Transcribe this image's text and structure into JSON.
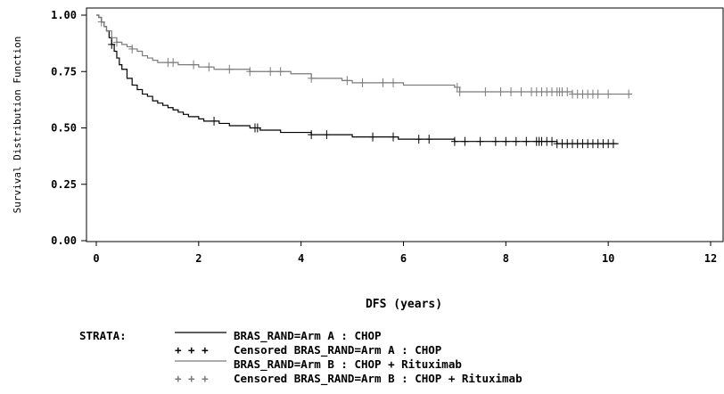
{
  "chart_data": {
    "type": "line",
    "subtype": "kaplan-meier",
    "title": "",
    "xlabel": "DFS (years)",
    "ylabel": "Survival Distribution Function",
    "xlim": [
      0,
      12
    ],
    "ylim": [
      0,
      1
    ],
    "x_ticks": [
      "0",
      "2",
      "4",
      "6",
      "8",
      "10",
      "12"
    ],
    "y_ticks": [
      "0.00",
      "0.25",
      "0.50",
      "0.75",
      "1.00"
    ],
    "grid": false,
    "legend": {
      "title": "STRATA:",
      "placement": "bottom",
      "entries": [
        {
          "label": "BRAS_RAND=Arm A : CHOP",
          "symbol": "line",
          "color": "#000000"
        },
        {
          "label": "Censored BRAS_RAND=Arm A : CHOP",
          "symbol": "+ + +",
          "color": "#000000"
        },
        {
          "label": "BRAS_RAND=Arm B : CHOP + Rituximab",
          "symbol": "line",
          "color": "#7a7a7a"
        },
        {
          "label": "Censored BRAS_RAND=Arm B : CHOP + Rituximab",
          "symbol": "+ + +",
          "color": "#7a7a7a"
        }
      ]
    },
    "series": [
      {
        "name": "BRAS_RAND=Arm A : CHOP",
        "color": "#000000",
        "x": [
          0,
          0.05,
          0.1,
          0.15,
          0.2,
          0.25,
          0.3,
          0.35,
          0.4,
          0.45,
          0.5,
          0.6,
          0.7,
          0.8,
          0.9,
          1.0,
          1.1,
          1.2,
          1.3,
          1.4,
          1.5,
          1.6,
          1.7,
          1.8,
          1.9,
          2.0,
          2.1,
          2.2,
          2.4,
          2.6,
          2.8,
          3.0,
          3.2,
          3.4,
          3.6,
          3.8,
          4.0,
          4.2,
          4.5,
          4.8,
          5.0,
          5.3,
          5.6,
          5.9,
          6.2,
          6.5,
          6.8,
          7.0,
          7.5,
          8.0,
          8.5,
          9.0,
          9.5,
          10.2
        ],
        "y": [
          1.0,
          0.99,
          0.97,
          0.95,
          0.93,
          0.9,
          0.87,
          0.84,
          0.81,
          0.78,
          0.76,
          0.72,
          0.69,
          0.67,
          0.65,
          0.64,
          0.62,
          0.61,
          0.6,
          0.59,
          0.58,
          0.57,
          0.56,
          0.55,
          0.55,
          0.54,
          0.53,
          0.53,
          0.52,
          0.51,
          0.51,
          0.5,
          0.49,
          0.49,
          0.48,
          0.48,
          0.48,
          0.47,
          0.47,
          0.47,
          0.46,
          0.46,
          0.46,
          0.45,
          0.45,
          0.45,
          0.45,
          0.44,
          0.44,
          0.44,
          0.44,
          0.43,
          0.43,
          0.43
        ],
        "censored_x": [
          0.3,
          2.3,
          3.1,
          3.15,
          4.2,
          4.5,
          5.4,
          5.8,
          6.3,
          6.5,
          7.0,
          7.2,
          7.5,
          7.8,
          8.0,
          8.2,
          8.4,
          8.6,
          8.65,
          8.7,
          8.8,
          8.9,
          9.0,
          9.1,
          9.2,
          9.3,
          9.4,
          9.5,
          9.6,
          9.7,
          9.8,
          9.9,
          10.0,
          10.1
        ]
      },
      {
        "name": "BRAS_RAND=Arm B : CHOP + Rituximab",
        "color": "#7a7a7a",
        "x": [
          0,
          0.05,
          0.1,
          0.15,
          0.2,
          0.3,
          0.4,
          0.5,
          0.6,
          0.7,
          0.8,
          0.9,
          1.0,
          1.1,
          1.2,
          1.4,
          1.6,
          1.8,
          2.0,
          2.3,
          2.6,
          3.0,
          3.4,
          3.8,
          4.2,
          4.5,
          4.8,
          5.0,
          5.5,
          6.0,
          6.5,
          7.0,
          7.1,
          7.5,
          8.0,
          8.5,
          9.0,
          9.3,
          9.6,
          10.45
        ],
        "y": [
          1.0,
          0.99,
          0.97,
          0.95,
          0.93,
          0.9,
          0.88,
          0.87,
          0.86,
          0.85,
          0.84,
          0.82,
          0.81,
          0.8,
          0.79,
          0.79,
          0.78,
          0.78,
          0.77,
          0.76,
          0.76,
          0.75,
          0.75,
          0.74,
          0.72,
          0.72,
          0.71,
          0.7,
          0.7,
          0.69,
          0.69,
          0.68,
          0.66,
          0.66,
          0.66,
          0.66,
          0.66,
          0.65,
          0.65,
          0.65
        ],
        "censored_x": [
          0.1,
          0.4,
          0.7,
          1.4,
          1.5,
          1.9,
          2.2,
          2.6,
          3.0,
          3.4,
          3.6,
          4.2,
          4.9,
          5.2,
          5.6,
          5.8,
          7.05,
          7.1,
          7.6,
          7.9,
          8.1,
          8.3,
          8.5,
          8.6,
          8.7,
          8.8,
          8.9,
          9.0,
          9.05,
          9.1,
          9.2,
          9.3,
          9.4,
          9.5,
          9.6,
          9.7,
          9.8,
          10.0,
          10.4
        ]
      }
    ]
  }
}
